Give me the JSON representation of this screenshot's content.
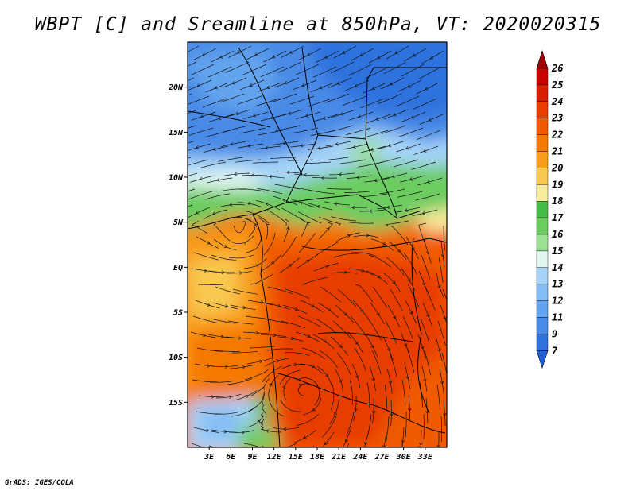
{
  "title": "WBPT [C] and Sreamline at 850hPa, VT: 2020020315",
  "footer": "GrADS: IGES/COLA",
  "map": {
    "lon_range": [
      0,
      36
    ],
    "lat_range": [
      -20,
      25
    ],
    "lat_ticks": [
      {
        "label": "20N",
        "value": 20
      },
      {
        "label": "15N",
        "value": 15
      },
      {
        "label": "10N",
        "value": 10
      },
      {
        "label": "5N",
        "value": 5
      },
      {
        "label": "EQ",
        "value": 0
      },
      {
        "label": "5S",
        "value": -5
      },
      {
        "label": "10S",
        "value": -10
      },
      {
        "label": "15S",
        "value": -15
      }
    ],
    "lon_ticks": [
      {
        "label": "3E",
        "value": 3
      },
      {
        "label": "6E",
        "value": 6
      },
      {
        "label": "9E",
        "value": 9
      },
      {
        "label": "12E",
        "value": 12
      },
      {
        "label": "15E",
        "value": 15
      },
      {
        "label": "18E",
        "value": 18
      },
      {
        "label": "21E",
        "value": 21
      },
      {
        "label": "24E",
        "value": 24
      },
      {
        "label": "27E",
        "value": 27
      },
      {
        "label": "30E",
        "value": 30
      },
      {
        "label": "33E",
        "value": 33
      }
    ]
  },
  "colorbar": {
    "labels": [
      "26",
      "25",
      "24",
      "23",
      "22",
      "21",
      "20",
      "19",
      "18",
      "17",
      "16",
      "15",
      "14",
      "13",
      "12",
      "11",
      "9",
      "7"
    ],
    "colors": [
      "#c80000",
      "#d81e00",
      "#e83c00",
      "#f05a00",
      "#f57800",
      "#f89e1e",
      "#f8c850",
      "#f8ec9e",
      "#48bc48",
      "#6ccc60",
      "#9ce092",
      "#e2f6f0",
      "#a6d4f8",
      "#84bcf4",
      "#64a4ee",
      "#4a8ae6",
      "#2f72de"
    ],
    "top_arrow": "#a00000",
    "bottom_arrow": "#2060d8"
  },
  "field_colors": {
    "c7": "#2f72de",
    "c9": "#4a8ae6",
    "c11": "#64a4ee",
    "c12": "#84bcf4",
    "c14": "#a6d4f8",
    "c15": "#e2f6f0",
    "c16": "#9ce092",
    "c17": "#6ccc60",
    "c18": "#48bc48",
    "c19": "#f8ec9e",
    "c20": "#f8c850",
    "c21": "#f89e1e",
    "c22": "#f57800",
    "c23": "#f05a00",
    "c24": "#e83c00"
  }
}
